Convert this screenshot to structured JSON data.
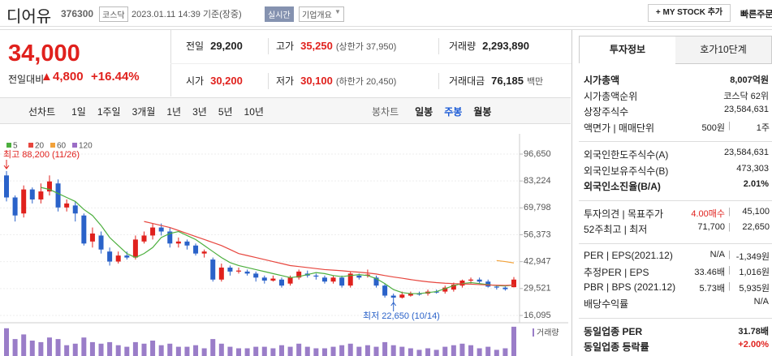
{
  "header": {
    "name": "디어유",
    "code": "376300",
    "market": "코스닥",
    "time": "2023.01.11 14:39 기준(장중)",
    "realtime": "실시간",
    "overview": "기업개요",
    "mystock": "+ MY STOCK 추가",
    "quick": "빠른주문"
  },
  "quote": {
    "price": "34,000",
    "change_label": "전일대비",
    "change": "4,800",
    "rate": "+16.44%",
    "rows": [
      [
        {
          "label": "전일",
          "value": "29,200"
        },
        {
          "label": "고가",
          "value": "35,250",
          "sub": "(상한가 37,950)",
          "color": "#e0211d"
        },
        {
          "label": "거래량",
          "value": "2,293,890"
        }
      ],
      [
        {
          "label": "시가",
          "value": "30,200",
          "color": "#e0211d"
        },
        {
          "label": "저가",
          "value": "30,100",
          "sub": "(하한가 20,450)",
          "color": "#e0211d"
        },
        {
          "label": "거래대금",
          "value": "76,185",
          "sub": "백만"
        }
      ]
    ]
  },
  "tabs": {
    "line": [
      "선차트",
      "1일",
      "1주일",
      "3개월",
      "1년",
      "3년",
      "5년",
      "10년"
    ],
    "candle": [
      "봉차트",
      "일봉",
      "주봉",
      "월봉"
    ]
  },
  "side": {
    "tabs": [
      "투자정보",
      "호가10단계"
    ],
    "sections": [
      [
        {
          "label": "시가총액",
          "value": "8,007억원",
          "bold": true
        },
        {
          "label": "시가총액순위",
          "value": "코스닥 62위"
        },
        {
          "label": "상장주식수",
          "value": "23,584,631"
        },
        {
          "label": "액면가 | 매매단위",
          "value": "500원",
          "value2": "1주"
        }
      ],
      [
        {
          "label": "외국인한도주식수(A)",
          "value": "23,584,631"
        },
        {
          "label": "외국인보유주식수(B)",
          "value": "473,303"
        },
        {
          "label": "외국인소진율(B/A)",
          "value": "2.01%",
          "bold": true
        }
      ],
      [
        {
          "label": "투자의견 | 목표주가",
          "value": "4.00매수",
          "value2": "45,100",
          "color": "#e0211d"
        },
        {
          "label": "52주최고 | 최저",
          "value": "71,700",
          "value2": "22,650"
        }
      ],
      [
        {
          "label": "PER | EPS(2021.12)",
          "value": "N/A",
          "value2": "-1,349원"
        },
        {
          "label": "추정PER | EPS",
          "value": "33.46배",
          "value2": "1,016원"
        },
        {
          "label": "PBR | BPS (2021.12)",
          "value": "5.73배",
          "value2": "5,935원"
        },
        {
          "label": "배당수익률",
          "value": "N/A"
        }
      ],
      [
        {
          "label": "동일업종 PER",
          "value": "31.78배",
          "bold": true
        },
        {
          "label": "동일업종 등락률",
          "value": "+2.00%",
          "bold": true,
          "color": "#e0211d"
        }
      ]
    ]
  },
  "chart_data": {
    "type": "candlestick",
    "up_color": "#e0211d",
    "down_color": "#2a62c9",
    "grid": true,
    "ylim": [
      13665,
      104750
    ],
    "yticks": [
      {
        "value": 96650,
        "label": "96,650"
      },
      {
        "value": 83224,
        "label": "83,224"
      },
      {
        "value": 69798,
        "label": "69,798"
      },
      {
        "value": 56373,
        "label": "56,373"
      },
      {
        "value": 42947,
        "label": "42,947"
      },
      {
        "value": 29521,
        "label": "29,521"
      },
      {
        "value": 16095,
        "label": "16,095"
      }
    ],
    "open": [
      86000,
      75000,
      67000,
      79000,
      74000,
      78000,
      82000,
      70000,
      71000,
      66000,
      53000,
      56000,
      48000,
      43000,
      46000,
      45000,
      53000,
      56000,
      60000,
      58000,
      52000,
      53000,
      51000,
      47000,
      44000,
      34000,
      40000,
      38000,
      38000,
      37000,
      35000,
      33500,
      34000,
      32000,
      35000,
      37000,
      36000,
      35000,
      33000,
      35000,
      31000,
      36000,
      36000,
      35000,
      31000,
      26000,
      25000,
      26000,
      27000,
      27000,
      28000,
      28000,
      29000,
      31000,
      33500,
      34000,
      33000,
      30500,
      30000,
      30200
    ],
    "high": [
      88200,
      76000,
      81000,
      80000,
      82000,
      86000,
      84000,
      74000,
      73000,
      67000,
      60000,
      58000,
      50000,
      48000,
      48000,
      56000,
      58000,
      62000,
      62000,
      60000,
      55000,
      54000,
      52000,
      49000,
      45000,
      42000,
      41000,
      40000,
      39000,
      38000,
      36000,
      36000,
      35000,
      36000,
      39000,
      38500,
      37000,
      36000,
      36000,
      36000,
      38000,
      37000,
      39000,
      36000,
      32000,
      27000,
      28000,
      28000,
      28000,
      29000,
      29000,
      31000,
      32500,
      34000,
      35000,
      35000,
      34000,
      31000,
      30500,
      35250
    ],
    "low": [
      73000,
      63000,
      65000,
      72000,
      72000,
      76000,
      68000,
      68000,
      63000,
      51000,
      50000,
      47000,
      41000,
      42000,
      44000,
      44000,
      52000,
      54000,
      56000,
      50000,
      50000,
      49000,
      46000,
      45000,
      33000,
      33000,
      36000,
      37000,
      36000,
      33000,
      32000,
      33000,
      30000,
      31000,
      34000,
      35000,
      34000,
      32000,
      32000,
      30000,
      30000,
      34000,
      35000,
      30000,
      25000,
      22650,
      24500,
      25500,
      26000,
      26000,
      27000,
      27000,
      28000,
      30000,
      32000,
      32000,
      30000,
      29000,
      28500,
      30100
    ],
    "close": [
      75000,
      66000,
      79000,
      74000,
      78000,
      83000,
      70000,
      72000,
      67000,
      52000,
      57000,
      49000,
      43000,
      46000,
      45000,
      54000,
      56000,
      60000,
      58000,
      52000,
      53000,
      51000,
      47000,
      48000,
      34000,
      40000,
      38000,
      38500,
      37000,
      35000,
      33500,
      34500,
      31000,
      35000,
      38000,
      36000,
      35500,
      33000,
      35000,
      31000,
      37000,
      35000,
      36500,
      31000,
      26000,
      25000,
      26500,
      27000,
      26500,
      28000,
      27500,
      30000,
      31500,
      33500,
      34000,
      33000,
      30500,
      30000,
      29200,
      34000
    ],
    "series": [
      {
        "name": "5",
        "color": "#4caf3e",
        "values": [
          null,
          null,
          null,
          null,
          80000,
          79000,
          77000,
          75000,
          73000,
          69000,
          66000,
          61000,
          55000,
          51000,
          47000,
          45000,
          47000,
          50000,
          55000,
          57000,
          58000,
          56000,
          54000,
          51000,
          48000,
          45000,
          42500,
          41000,
          40000,
          39000,
          38000,
          37000,
          36000,
          35000,
          35500,
          36500,
          37500,
          37000,
          36000,
          35500,
          36000,
          36500,
          36000,
          34500,
          32000,
          29000,
          27500,
          27000,
          27000,
          27500,
          28000,
          29500,
          31000,
          32000,
          32500,
          32000,
          31500,
          31000,
          30800,
          31300
        ]
      },
      {
        "name": "20",
        "color": "#e7463e",
        "values": [
          null,
          null,
          null,
          null,
          null,
          null,
          null,
          null,
          null,
          null,
          null,
          null,
          null,
          null,
          null,
          null,
          63000,
          62000,
          61000,
          60000,
          58500,
          57000,
          55500,
          54000,
          52500,
          51000,
          49000,
          47000,
          46000,
          45000,
          44000,
          43000,
          42000,
          41000,
          40500,
          40000,
          39500,
          39000,
          38700,
          38400,
          38000,
          37700,
          37300,
          36800,
          36000,
          35300,
          34700,
          34000,
          33400,
          32900,
          32500,
          32200,
          32000,
          31800,
          31700,
          31500,
          31300,
          31200,
          31100,
          31300
        ]
      },
      {
        "name": "60",
        "color": "#f2a23a",
        "values": [
          null,
          null,
          null,
          null,
          null,
          null,
          null,
          null,
          null,
          null,
          null,
          null,
          null,
          null,
          null,
          null,
          null,
          null,
          null,
          null,
          null,
          null,
          null,
          null,
          null,
          null,
          null,
          null,
          null,
          null,
          null,
          null,
          null,
          null,
          null,
          null,
          null,
          null,
          null,
          null,
          null,
          null,
          null,
          null,
          null,
          null,
          null,
          null,
          null,
          null,
          null,
          null,
          null,
          null,
          null,
          null,
          null,
          43500,
          43000,
          42300
        ]
      },
      {
        "name": "120",
        "color": "#9b6dc6",
        "values": [
          null,
          null,
          null,
          null,
          null,
          null,
          null,
          null,
          null,
          null,
          null,
          null,
          null,
          null,
          null,
          null,
          null,
          null,
          null,
          null,
          null,
          null,
          null,
          null,
          null,
          null,
          null,
          null,
          null,
          null,
          null,
          null,
          null,
          null,
          null,
          null,
          null,
          null,
          null,
          null,
          null,
          null,
          null,
          null,
          null,
          null,
          null,
          null,
          null,
          null,
          null,
          null,
          null,
          null,
          null,
          null,
          null,
          null,
          null,
          null
        ]
      }
    ],
    "annotations": [
      "최고 88,200 (11/26)",
      "최저 22,650 (10/14)"
    ],
    "volume_label": "거래량",
    "volume_color": "#9a7dc8",
    "volume_ylim": [
      0,
      100
    ],
    "volume": [
      90,
      55,
      70,
      50,
      45,
      60,
      55,
      35,
      40,
      60,
      45,
      40,
      45,
      35,
      30,
      45,
      40,
      50,
      35,
      40,
      30,
      30,
      35,
      25,
      55,
      40,
      30,
      25,
      25,
      30,
      30,
      25,
      35,
      30,
      40,
      30,
      25,
      25,
      30,
      35,
      40,
      30,
      35,
      30,
      45,
      35,
      30,
      25,
      20,
      25,
      20,
      30,
      35,
      40,
      35,
      25,
      30,
      20,
      25,
      95
    ]
  }
}
